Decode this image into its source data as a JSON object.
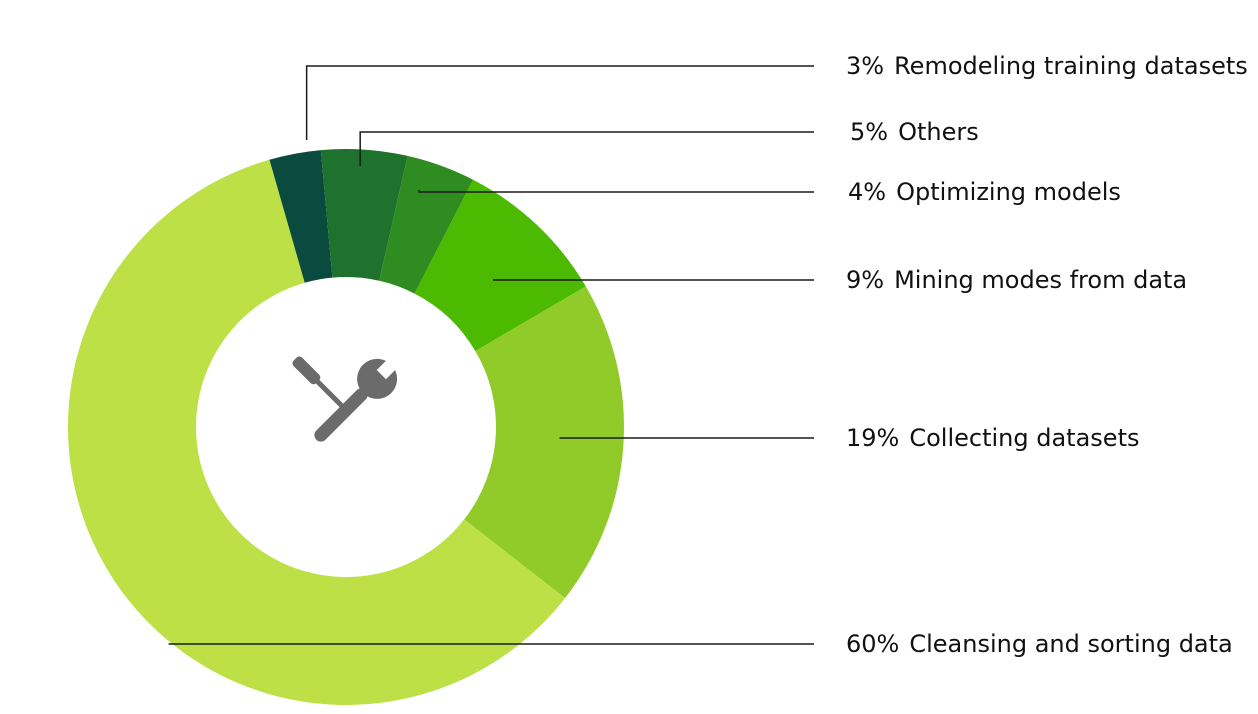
{
  "chart_data": {
    "type": "pie",
    "style": "donut",
    "title": "",
    "center_icon": "tools-icon",
    "slices": [
      {
        "pct_label": "3%",
        "name": "Remodeling training datasets",
        "value": 3,
        "color": "#0b4a3e"
      },
      {
        "pct_label": "5%",
        "name": "Others",
        "value": 5,
        "color": "#1e722e"
      },
      {
        "pct_label": "4%",
        "name": "Optimizing models",
        "value": 4,
        "color": "#2f8c20"
      },
      {
        "pct_label": "9%",
        "name": "Mining modes from data",
        "value": 9,
        "color": "#4cba00"
      },
      {
        "pct_label": "19%",
        "name": "Collecting datasets",
        "value": 19,
        "color": "#91cb2a"
      },
      {
        "pct_label": "60%",
        "name": "Cleansing and sorting data",
        "value": 60,
        "color": "#bde047"
      }
    ]
  },
  "colors": {
    "icon": "#6b6b6b",
    "leader": "#1a1a1a"
  }
}
